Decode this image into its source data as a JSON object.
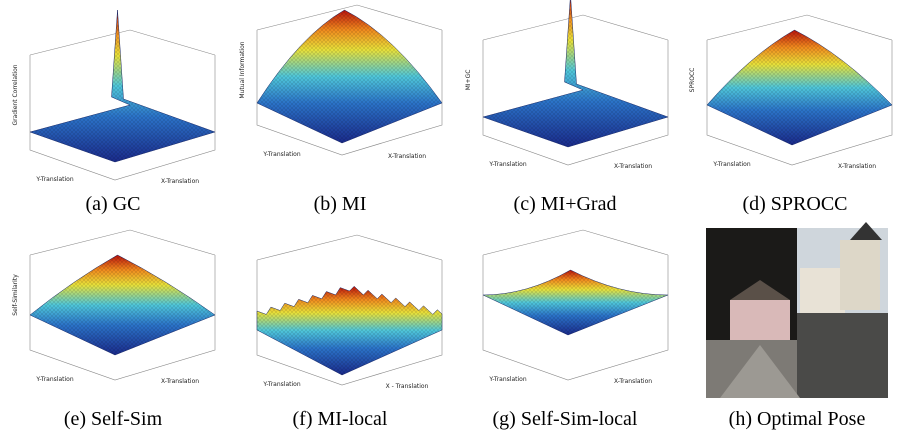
{
  "figure": {
    "panels": [
      {
        "caption": "(a) GC",
        "z_label": "Gradient Correlation",
        "x_label": "X-Translation",
        "y_label": "Y-Translation"
      },
      {
        "caption": "(b) MI",
        "z_label": "Mutual Information",
        "x_label": "X-Translation",
        "y_label": "Y-Translation"
      },
      {
        "caption": "(c) MI+Grad",
        "z_label": "MI+GC",
        "x_label": "X-Translation",
        "y_label": "Y-Translation"
      },
      {
        "caption": "(d) SPROCC",
        "z_label": "SPROCC",
        "x_label": "X-Translation",
        "y_label": "Y-Translation"
      },
      {
        "caption": "(e) Self-Sim",
        "z_label": "Self-Similarity",
        "x_label": "X-Translation",
        "y_label": "Y-Translation"
      },
      {
        "caption": "(f) MI-local",
        "x_label": "X - Translation",
        "y_label": "Y-Translation"
      },
      {
        "caption": "(g) Self-Sim-local",
        "x_label": "X-Translation",
        "y_label": "Y-Translation"
      },
      {
        "caption": "(h) Optimal Pose"
      }
    ]
  }
}
